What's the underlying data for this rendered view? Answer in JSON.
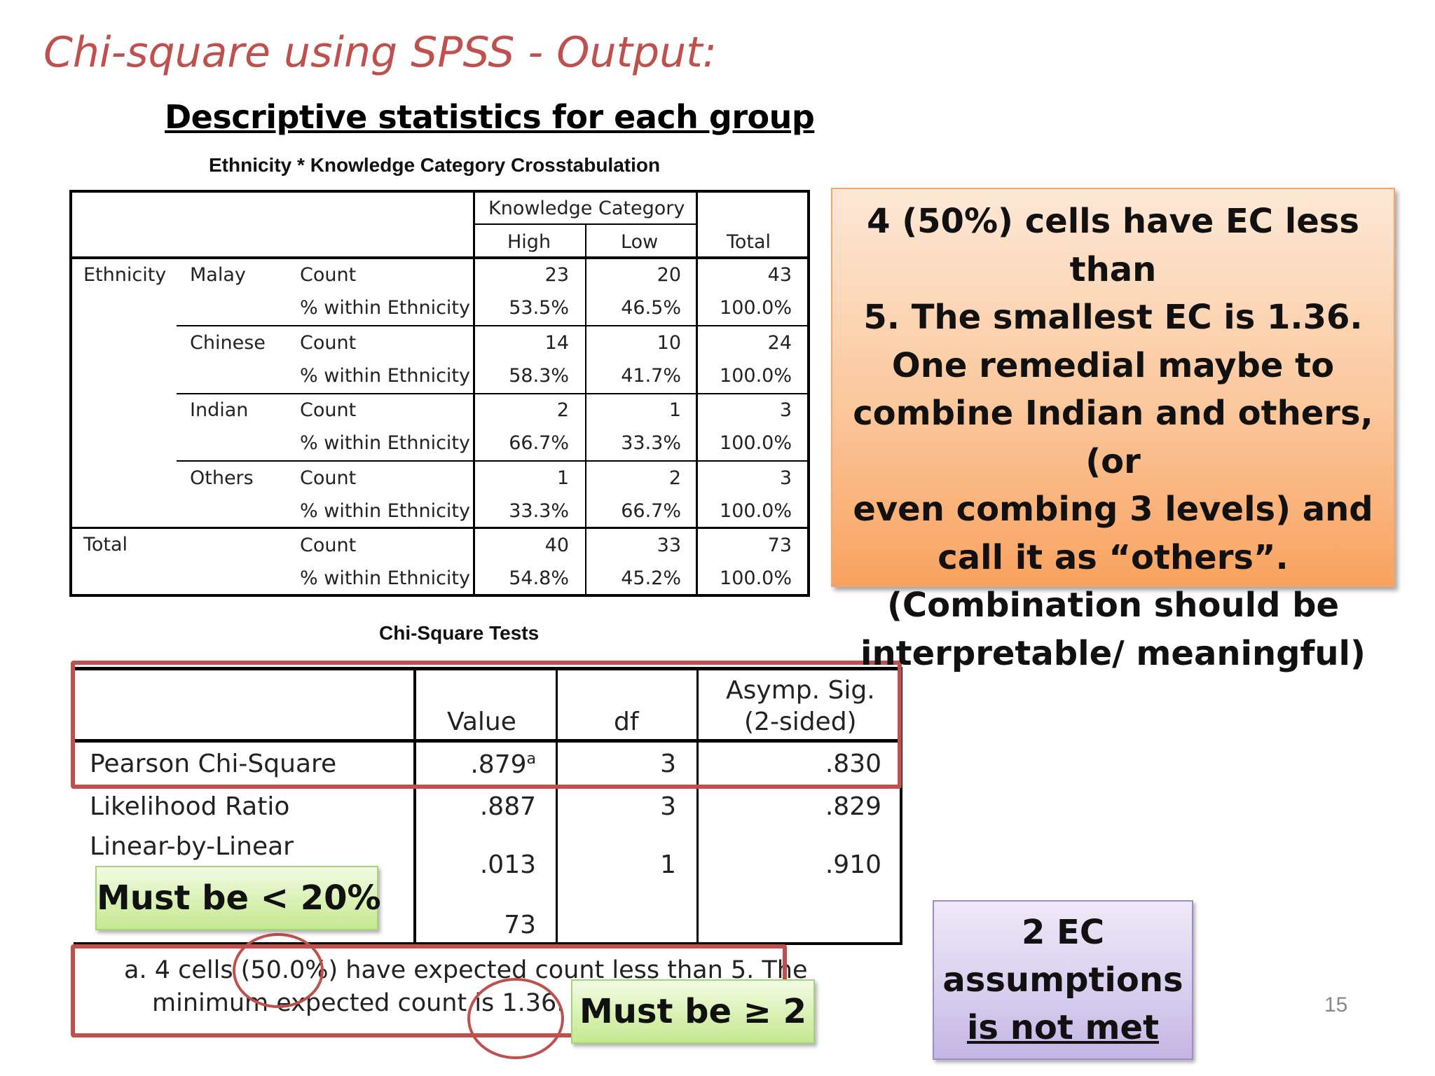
{
  "slide": {
    "title": "Chi-square using SPSS - Output:",
    "section_title": "Descriptive statistics for each group",
    "page_number": "15"
  },
  "crosstab": {
    "caption": "Ethnicity * Knowledge Category Crosstabulation",
    "group_header": "Knowledge Category",
    "col_high": "High",
    "col_low": "Low",
    "col_total": "Total",
    "row_var": "Ethnicity",
    "total_label": "Total",
    "rows": [
      {
        "group": "Malay",
        "count_label": "Count",
        "pct_label": "% within Ethnicity",
        "count": [
          "23",
          "20",
          "43"
        ],
        "pct": [
          "53.5%",
          "46.5%",
          "100.0%"
        ]
      },
      {
        "group": "Chinese",
        "count_label": "Count",
        "pct_label": "% within Ethnicity",
        "count": [
          "14",
          "10",
          "24"
        ],
        "pct": [
          "58.3%",
          "41.7%",
          "100.0%"
        ]
      },
      {
        "group": "Indian",
        "count_label": "Count",
        "pct_label": "% within Ethnicity",
        "count": [
          "2",
          "1",
          "3"
        ],
        "pct": [
          "66.7%",
          "33.3%",
          "100.0%"
        ]
      },
      {
        "group": "Others",
        "count_label": "Count",
        "pct_label": "% within Ethnicity",
        "count": [
          "1",
          "2",
          "3"
        ],
        "pct": [
          "33.3%",
          "66.7%",
          "100.0%"
        ]
      },
      {
        "group": "",
        "count_label": "Count",
        "pct_label": "% within Ethnicity",
        "count": [
          "40",
          "33",
          "73"
        ],
        "pct": [
          "54.8%",
          "45.2%",
          "100.0%"
        ]
      }
    ]
  },
  "chi": {
    "caption": "Chi-Square Tests",
    "col_value": "Value",
    "col_df": "df",
    "col_sig_1": "Asymp. Sig.",
    "col_sig_2": "(2-sided)",
    "rows": [
      {
        "label": "Pearson Chi-Square",
        "value": ".879",
        "sup": "a",
        "df": "3",
        "sig": ".830"
      },
      {
        "label": "Likelihood Ratio",
        "value": ".887",
        "sup": "",
        "df": "3",
        "sig": ".829"
      },
      {
        "label": "Linear-by-Linear",
        "value": ".013",
        "sup": "",
        "df": "1",
        "sig": ".910"
      },
      {
        "label": "",
        "value": "73",
        "sup": "",
        "df": "",
        "sig": ""
      }
    ],
    "footnote_1": "a. 4 cells (50.0%) have expected count less than 5. The",
    "footnote_2": "minimum expected count is 1.36."
  },
  "callouts": {
    "orange_lines": [
      "4 (50%) cells have EC less than",
      "5. The smallest EC is 1.36.",
      "One remedial maybe to",
      "combine Indian and others, (or",
      "even combing 3 levels) and",
      "call it as “others”.",
      "(Combination should be",
      "interpretable/ meaningful)"
    ],
    "green_1": "Must be < 20%",
    "green_2": "Must be ≥ 2",
    "purple_line1": "2 EC",
    "purple_line2": "assumptions",
    "purple_line3": "is not met"
  },
  "colors": {
    "title_red": "#c0504d",
    "orange_box": "#fbc79c",
    "green_box": "#d7f0b0",
    "purple_box": "#d7cdee"
  }
}
